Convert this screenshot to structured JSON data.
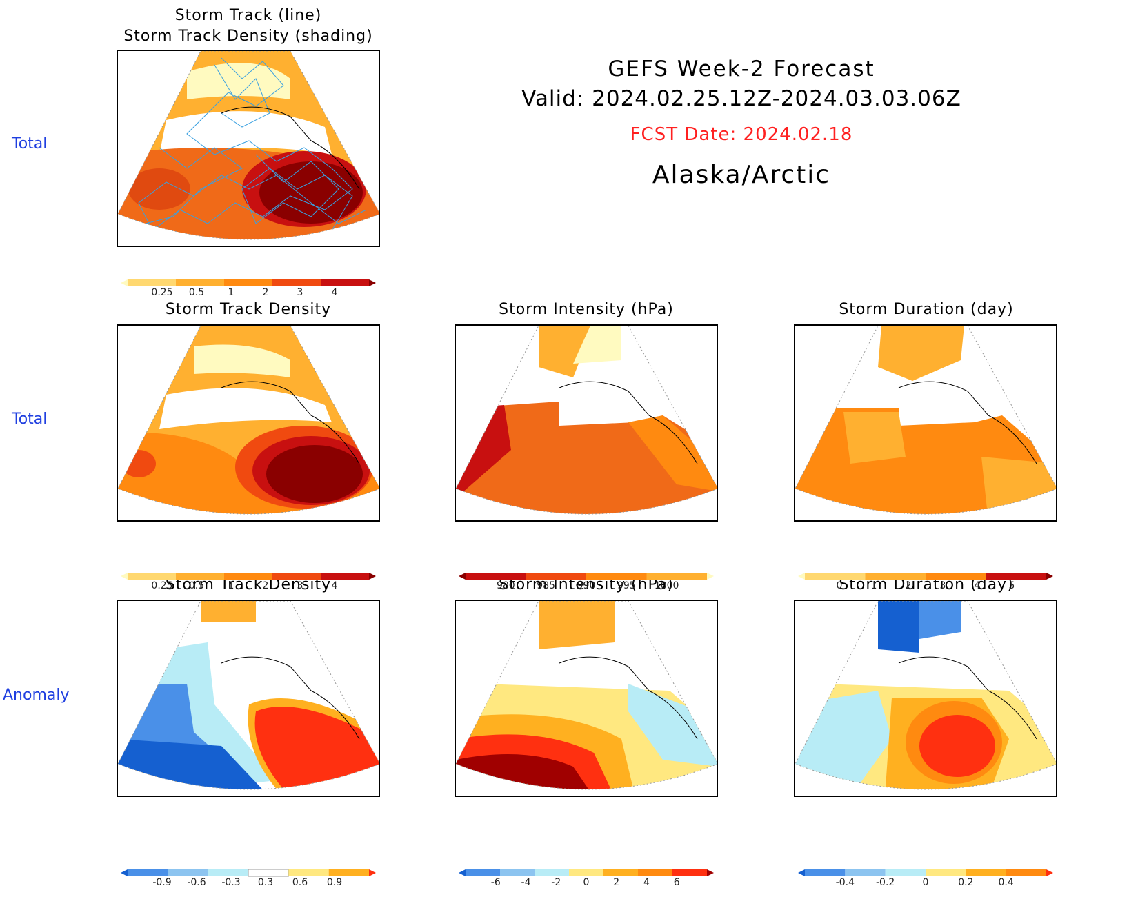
{
  "header": {
    "line1": "GEFS Week-2 Forecast",
    "line2": "Valid: 2024.02.25.12Z-2024.03.03.06Z",
    "fcst": "FCST Date: 2024.02.18",
    "region": "Alaska/Arctic",
    "fcst_color": "#ff2020"
  },
  "row_labels": {
    "top": "Total",
    "middle": "Total",
    "bottom": "Anomaly"
  },
  "panels": {
    "track_line": {
      "title1": "Storm Track (line)",
      "title2": "Storm Track Density (shading)"
    },
    "density_total": {
      "title": "Storm Track Density"
    },
    "intensity_total": {
      "title": "Storm Intensity (hPa)"
    },
    "duration_total": {
      "title": "Storm Duration (day)"
    },
    "density_anom": {
      "title": "Storm Track Density"
    },
    "intensity_anom": {
      "title": "Storm Intensity (hPa)"
    },
    "duration_anom": {
      "title": "Storm Duration (day)"
    }
  },
  "colorbars": {
    "density": {
      "ticks": [
        "0.25",
        "0.5",
        "1",
        "2",
        "3",
        "4"
      ],
      "colors": [
        "#fffac0",
        "#ffd870",
        "#ffb030",
        "#ff8a10",
        "#f04a10",
        "#c81010",
        "#8a0000"
      ]
    },
    "intensity": {
      "ticks": [
        "980",
        "985",
        "990",
        "995",
        "1000"
      ],
      "colors": [
        "#8a0000",
        "#c81010",
        "#f04a10",
        "#ff8a10",
        "#ffb030",
        "#fffac0"
      ]
    },
    "duration": {
      "ticks": [
        "0",
        "1",
        "2",
        "3",
        "4",
        "5"
      ],
      "colors": [
        "#fffac0",
        "#ffd870",
        "#ffb030",
        "#ff8a10",
        "#c81010",
        "#8a0000"
      ]
    },
    "density_anom": {
      "ticks": [
        "-0.9",
        "-0.6",
        "-0.3",
        "0.3",
        "0.6",
        "0.9"
      ],
      "colors": [
        "#1560d0",
        "#4a90e8",
        "#8cc4f0",
        "#b8ecf6",
        "#ffffff",
        "#ffe880",
        "#ffb020",
        "#ff3010"
      ]
    },
    "intensity_anom": {
      "ticks": [
        "-6",
        "-4",
        "-2",
        "0",
        "2",
        "4",
        "6"
      ],
      "colors": [
        "#1560d0",
        "#4a90e8",
        "#8cc4f0",
        "#b8ecf6",
        "#ffe880",
        "#ffb020",
        "#ff8a10",
        "#ff3010",
        "#a00000"
      ]
    },
    "duration_anom": {
      "ticks": [
        "-0.4",
        "-0.2",
        "0",
        "0.2",
        "0.4"
      ],
      "colors": [
        "#1560d0",
        "#4a90e8",
        "#8cc4f0",
        "#b8ecf6",
        "#ffe880",
        "#ffb020",
        "#ff8a10",
        "#ff3010"
      ]
    }
  }
}
